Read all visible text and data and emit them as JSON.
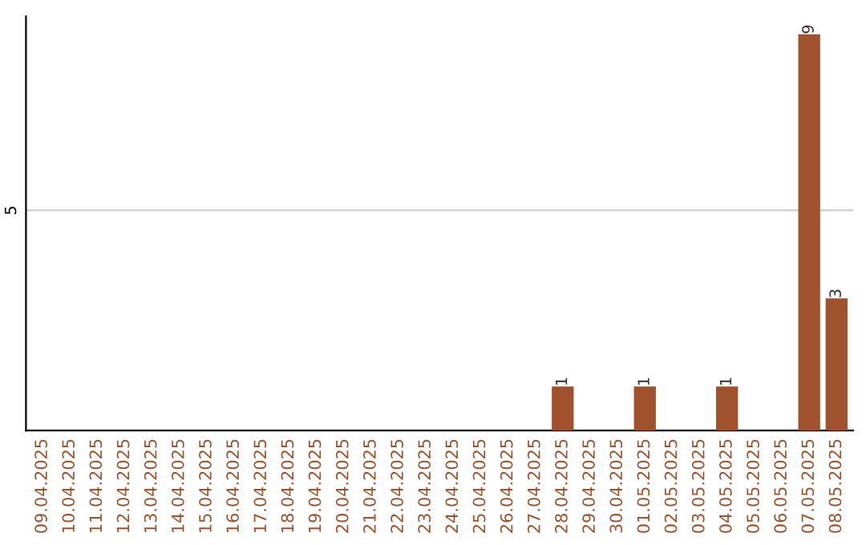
{
  "chart_data": {
    "type": "bar",
    "categories": [
      "09.04.2025",
      "10.04.2025",
      "11.04.2025",
      "12.04.2025",
      "13.04.2025",
      "14.04.2025",
      "15.04.2025",
      "16.04.2025",
      "17.04.2025",
      "18.04.2025",
      "19.04.2025",
      "20.04.2025",
      "21.04.2025",
      "22.04.2025",
      "23.04.2025",
      "24.04.2025",
      "25.04.2025",
      "26.04.2025",
      "27.04.2025",
      "28.04.2025",
      "29.04.2025",
      "30.04.2025",
      "01.05.2025",
      "02.05.2025",
      "03.05.2025",
      "04.05.2025",
      "05.05.2025",
      "06.05.2025",
      "07.05.2025",
      "08.05.2025"
    ],
    "values": [
      null,
      null,
      null,
      null,
      null,
      null,
      null,
      null,
      null,
      null,
      null,
      null,
      null,
      null,
      null,
      null,
      null,
      null,
      null,
      1,
      null,
      null,
      1,
      null,
      null,
      1,
      null,
      null,
      9,
      3
    ],
    "value_labels": [
      null,
      null,
      null,
      null,
      null,
      null,
      null,
      null,
      null,
      null,
      null,
      null,
      null,
      null,
      null,
      null,
      null,
      null,
      null,
      "1",
      null,
      null,
      "1",
      null,
      null,
      "1",
      null,
      null,
      "9",
      "3"
    ],
    "color": "#a0522d",
    "ref_lines": [
      {
        "axis": "y",
        "value": 5,
        "label": "5",
        "color": "#cccccc"
      }
    ],
    "legend": false
  }
}
